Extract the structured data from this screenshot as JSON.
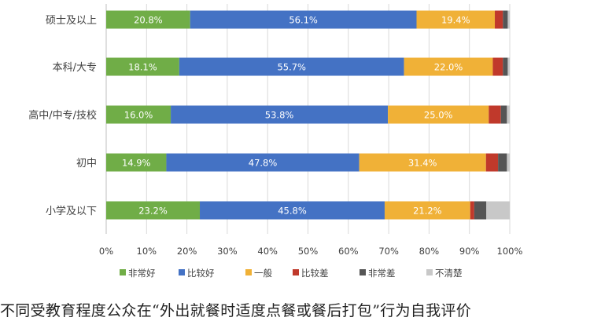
{
  "chart_data": {
    "type": "bar",
    "orientation": "horizontal",
    "stacked": "percent",
    "categories": [
      "硕士及以上",
      "本科/大专",
      "高中/中专/技校",
      "初中",
      "小学及以下"
    ],
    "series": [
      {
        "name": "非常好",
        "color": "#70AD47",
        "values": [
          20.8,
          18.1,
          16.0,
          14.9,
          23.2
        ],
        "labels": [
          "20.8%",
          "18.1%",
          "16.0%",
          "14.9%",
          "23.2%"
        ]
      },
      {
        "name": "比较好",
        "color": "#4472C4",
        "values": [
          56.1,
          55.7,
          53.8,
          47.8,
          45.8
        ],
        "labels": [
          "56.1%",
          "55.7%",
          "53.8%",
          "47.8%",
          "45.8%"
        ]
      },
      {
        "name": "一般",
        "color": "#F0B137",
        "values": [
          19.4,
          22.0,
          25.0,
          31.4,
          21.2
        ],
        "labels": [
          "19.4%",
          "22.0%",
          "25.0%",
          "31.4%",
          "21.2%"
        ]
      },
      {
        "name": "比较差",
        "color": "#C0392B",
        "values": [
          2.0,
          2.5,
          3.0,
          3.0,
          1.0
        ]
      },
      {
        "name": "非常差",
        "color": "#555555",
        "values": [
          1.2,
          1.2,
          1.5,
          2.2,
          3.0
        ]
      },
      {
        "name": "不清楚",
        "color": "#C8C8C8",
        "values": [
          0.5,
          0.5,
          0.7,
          0.7,
          5.8
        ]
      }
    ],
    "xlim": [
      0,
      100
    ],
    "x_ticks": [
      "0%",
      "10%",
      "20%",
      "30%",
      "40%",
      "50%",
      "60%",
      "70%",
      "80%",
      "90%",
      "100%"
    ],
    "grid": true,
    "legend_position": "bottom"
  },
  "caption": "不同受教育程度公众在“外出就餐时适度点餐或餐后打包”行为自我评价"
}
